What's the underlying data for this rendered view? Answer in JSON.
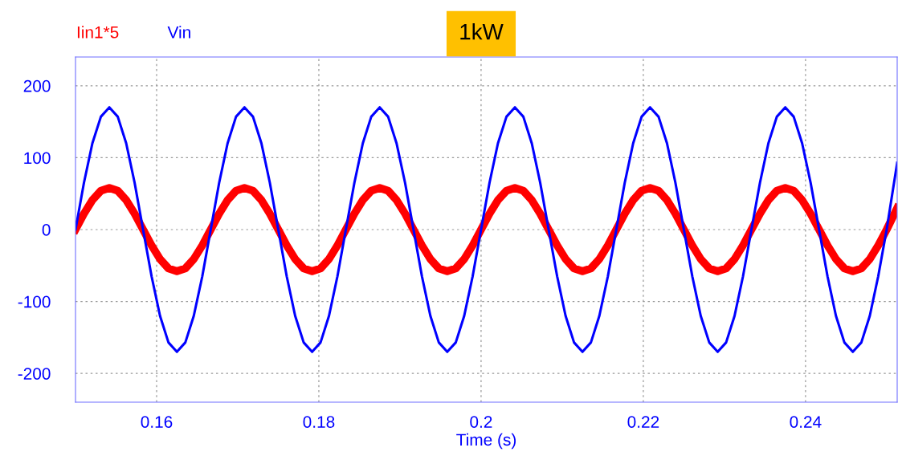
{
  "chart_data": {
    "type": "line",
    "title": "1kW",
    "xlabel": "Time (s)",
    "x": [
      0.15,
      0.15104,
      0.15208,
      0.15313,
      0.15417,
      0.15521,
      0.15625,
      0.15729,
      0.15833,
      0.15938,
      0.16042,
      0.16146,
      0.1625,
      0.16354,
      0.16458,
      0.16563,
      0.16667,
      0.16771,
      0.16875,
      0.16979,
      0.17083,
      0.17188,
      0.17292,
      0.17396,
      0.175,
      0.17604,
      0.17708,
      0.17813,
      0.17917,
      0.18021,
      0.18125,
      0.18229,
      0.18333,
      0.18438,
      0.18542,
      0.18646,
      0.1875,
      0.18854,
      0.18958,
      0.19063,
      0.19167,
      0.19271,
      0.19375,
      0.19479,
      0.19583,
      0.19688,
      0.19792,
      0.19896,
      0.2,
      0.20104,
      0.20208,
      0.20313,
      0.20417,
      0.20521,
      0.20625,
      0.20729,
      0.20833,
      0.20938,
      0.21042,
      0.21146,
      0.2125,
      0.21354,
      0.21458,
      0.21563,
      0.21667,
      0.21771,
      0.21875,
      0.21979,
      0.22083,
      0.22188,
      0.22292,
      0.22396,
      0.225,
      0.22604,
      0.22708,
      0.22813,
      0.22917,
      0.23021,
      0.23125,
      0.23229,
      0.23333,
      0.23438,
      0.23542,
      0.23646,
      0.2375,
      0.23854,
      0.23958,
      0.24063,
      0.24167,
      0.24271,
      0.24375,
      0.24479,
      0.24583,
      0.24688,
      0.24792,
      0.24896,
      0.25,
      0.2513
    ],
    "series": [
      {
        "name": "Iin1*5",
        "color": "#ff0000",
        "values": [
          0,
          22,
          41,
          54,
          58,
          54,
          41,
          22,
          0,
          -22,
          -41,
          -54,
          -58,
          -54,
          -41,
          -22,
          0,
          22,
          41,
          54,
          58,
          54,
          41,
          22,
          0,
          -22,
          -41,
          -54,
          -58,
          -54,
          -41,
          -22,
          0,
          22,
          41,
          54,
          58,
          54,
          41,
          22,
          0,
          -22,
          -41,
          -54,
          -58,
          -54,
          -41,
          -22,
          0,
          22,
          41,
          54,
          58,
          54,
          41,
          22,
          0,
          -22,
          -41,
          -54,
          -58,
          -54,
          -41,
          -22,
          0,
          22,
          41,
          54,
          58,
          54,
          41,
          22,
          0,
          -22,
          -41,
          -54,
          -58,
          -54,
          -41,
          -22,
          0,
          22,
          41,
          54,
          58,
          54,
          41,
          22,
          0,
          -22,
          -41,
          -54,
          -58,
          -54,
          -41,
          -22,
          0,
          30
        ]
      },
      {
        "name": "Vin",
        "color": "#0000ff",
        "values": [
          0,
          65,
          120,
          157,
          170,
          157,
          120,
          65,
          0,
          -65,
          -120,
          -157,
          -170,
          -157,
          -120,
          -65,
          0,
          65,
          120,
          157,
          170,
          157,
          120,
          65,
          0,
          -65,
          -120,
          -157,
          -170,
          -157,
          -120,
          -65,
          0,
          65,
          120,
          157,
          170,
          157,
          120,
          65,
          0,
          -65,
          -120,
          -157,
          -170,
          -157,
          -120,
          -65,
          0,
          65,
          120,
          157,
          170,
          157,
          120,
          65,
          0,
          -65,
          -120,
          -157,
          -170,
          -157,
          -120,
          -65,
          0,
          65,
          120,
          157,
          170,
          157,
          120,
          65,
          0,
          -65,
          -120,
          -157,
          -170,
          -157,
          -120,
          -65,
          0,
          65,
          120,
          157,
          170,
          157,
          120,
          65,
          0,
          -65,
          -120,
          -157,
          -170,
          -157,
          -120,
          -65,
          0,
          93
        ]
      }
    ],
    "xlim": [
      0.15,
      0.2513
    ],
    "ylim": [
      -240,
      240
    ],
    "xticks": [
      0.16,
      0.18,
      0.2,
      0.22,
      0.24
    ],
    "yticks": [
      -200,
      -100,
      0,
      100,
      200
    ],
    "grid": true,
    "legend": "top left",
    "line_style": "solid",
    "marker": "none"
  }
}
